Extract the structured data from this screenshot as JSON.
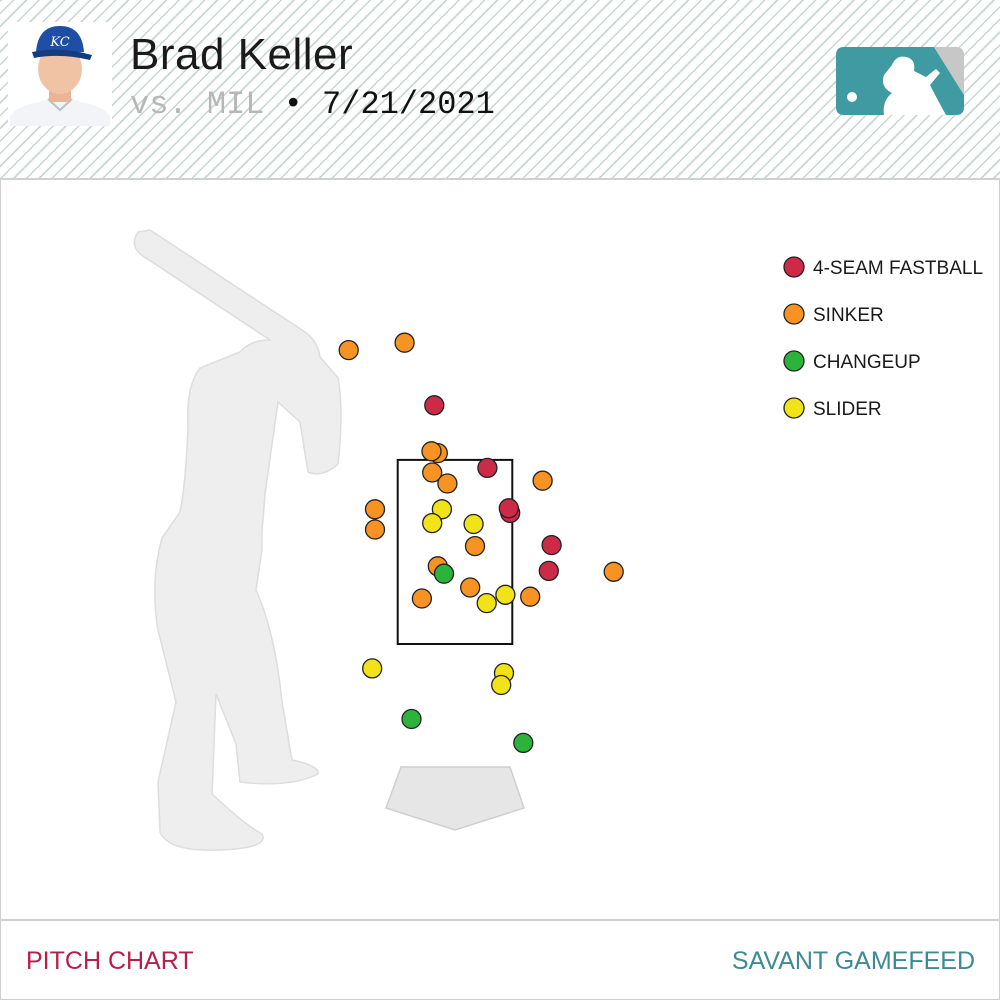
{
  "header": {
    "player_name": "Brad Keller",
    "opponent": "vs. MIL",
    "separator": " • ",
    "date": "7/21/2021"
  },
  "footer": {
    "left_label": "PITCH CHART",
    "right_label": "SAVANT GAMEFEED"
  },
  "colors": {
    "four_seam": "#cc2b47",
    "sinker": "#f79322",
    "changeup": "#2bb33b",
    "slider": "#f2e218",
    "footer_left": "#b5204a",
    "footer_right": "#3c8a95"
  },
  "chart_data": {
    "type": "scatter",
    "xlabel": "",
    "ylabel": "",
    "grid": false,
    "legend_position": "top-right",
    "strike_zone": {
      "x": [
        -0.83,
        0.83
      ],
      "z": [
        1.5,
        3.5
      ]
    },
    "xlim": [
      -6.57,
      7.84
    ],
    "ylim": [
      -1.3,
      6.66
    ],
    "series": [
      {
        "name": "4-SEAM FASTBALL",
        "color": "#cc2b47",
        "points": [
          [
            -0.3,
            3.6
          ],
          [
            0.47,
            2.92
          ],
          [
            0.8,
            2.43
          ],
          [
            0.78,
            2.48
          ],
          [
            1.4,
            2.08
          ],
          [
            1.36,
            1.8
          ]
        ]
      },
      {
        "name": "SINKER",
        "color": "#f79322",
        "points": [
          [
            -1.54,
            4.2
          ],
          [
            -0.73,
            4.28
          ],
          [
            -0.25,
            3.08
          ],
          [
            -0.34,
            3.1
          ],
          [
            -0.33,
            2.87
          ],
          [
            -0.11,
            2.75
          ],
          [
            1.27,
            2.78
          ],
          [
            -1.16,
            2.47
          ],
          [
            -1.16,
            2.25
          ],
          [
            0.29,
            2.07
          ],
          [
            -0.25,
            1.85
          ],
          [
            2.3,
            1.79
          ],
          [
            0.22,
            1.62
          ],
          [
            1.09,
            1.52
          ],
          [
            -0.48,
            1.5
          ]
        ]
      },
      {
        "name": "CHANGEUP",
        "color": "#2bb33b",
        "points": [
          [
            -0.16,
            1.77
          ],
          [
            -0.63,
            0.19
          ],
          [
            0.99,
            -0.07
          ]
        ]
      },
      {
        "name": "SLIDER",
        "color": "#f2e218",
        "points": [
          [
            -0.19,
            2.47
          ],
          [
            -0.33,
            2.32
          ],
          [
            0.27,
            2.31
          ],
          [
            0.73,
            1.54
          ],
          [
            0.46,
            1.45
          ],
          [
            -1.2,
            0.74
          ],
          [
            0.71,
            0.69
          ],
          [
            0.67,
            0.56
          ]
        ]
      }
    ]
  }
}
